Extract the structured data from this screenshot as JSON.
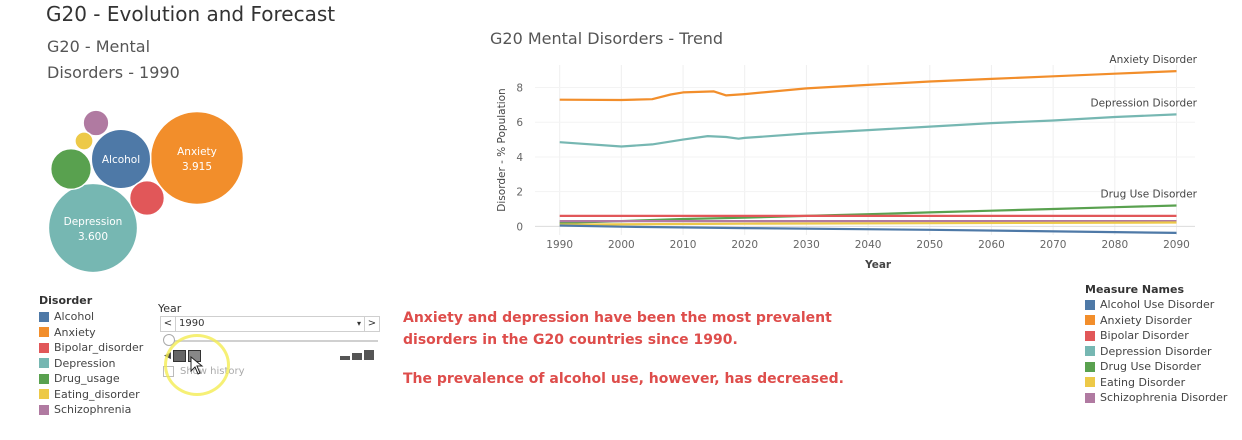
{
  "page": {
    "title": "G20 - Evolution and Forecast",
    "bubble_title": "G20 - Mental Disorders - 1990",
    "line_title": "G20 Mental Disorders - Trend"
  },
  "colors": {
    "blue": "#4e79a7",
    "orange": "#f28e2b",
    "red": "#e15759",
    "teal": "#76b7b2",
    "green": "#59a14f",
    "yellow": "#edc948",
    "purple": "#b07aa1"
  },
  "chart_data": [
    {
      "type": "bubble",
      "title": "G20 - Mental Disorders - 1990",
      "bubbles": [
        {
          "name": "Anxiety",
          "label": "Anxiety",
          "value_label": "3.915",
          "value": 3.915,
          "color": "#f28e2b"
        },
        {
          "name": "Depression",
          "label": "Depression",
          "value_label": "3.600",
          "value": 3.6,
          "color": "#76b7b2"
        },
        {
          "name": "Alcohol",
          "label": "Alcohol",
          "value_label": "",
          "value": 1.6,
          "color": "#4e79a7"
        },
        {
          "name": "Drug_usage",
          "label": "",
          "value_label": "",
          "value": 0.75,
          "color": "#59a14f"
        },
        {
          "name": "Bipolar_disorder",
          "label": "",
          "value_label": "",
          "value": 0.55,
          "color": "#e15759"
        },
        {
          "name": "Schizophrenia",
          "label": "",
          "value_label": "",
          "value": 0.3,
          "color": "#b07aa1"
        },
        {
          "name": "Eating_disorder",
          "label": "",
          "value_label": "",
          "value": 0.15,
          "color": "#edc948"
        }
      ]
    },
    {
      "type": "line",
      "title": "G20 Mental Disorders - Trend",
      "xlabel": "Year",
      "ylabel": "Disorder - % Population",
      "x_ticks": [
        1990,
        2000,
        2010,
        2020,
        2030,
        2040,
        2050,
        2060,
        2070,
        2080,
        2090
      ],
      "y_ticks": [
        0,
        2,
        4,
        6,
        8
      ],
      "xlim": [
        1986,
        2093
      ],
      "ylim": [
        -0.5,
        9.3
      ],
      "series": [
        {
          "name": "Anxiety Disorder",
          "color": "#f28e2b",
          "end_label": "Anxiety Disorder",
          "points": [
            [
              1990,
              7.3
            ],
            [
              2000,
              7.28
            ],
            [
              2005,
              7.33
            ],
            [
              2008,
              7.6
            ],
            [
              2010,
              7.72
            ],
            [
              2015,
              7.78
            ],
            [
              2017,
              7.55
            ],
            [
              2020,
              7.62
            ],
            [
              2030,
              7.95
            ],
            [
              2040,
              8.15
            ],
            [
              2050,
              8.35
            ],
            [
              2060,
              8.5
            ],
            [
              2070,
              8.65
            ],
            [
              2080,
              8.8
            ],
            [
              2090,
              8.95
            ]
          ]
        },
        {
          "name": "Depression Disorder",
          "color": "#76b7b2",
          "end_label": "Depression Disorder",
          "points": [
            [
              1990,
              4.85
            ],
            [
              2000,
              4.6
            ],
            [
              2005,
              4.72
            ],
            [
              2010,
              5.0
            ],
            [
              2014,
              5.2
            ],
            [
              2017,
              5.15
            ],
            [
              2019,
              5.05
            ],
            [
              2020,
              5.1
            ],
            [
              2030,
              5.35
            ],
            [
              2040,
              5.55
            ],
            [
              2050,
              5.75
            ],
            [
              2060,
              5.95
            ],
            [
              2070,
              6.1
            ],
            [
              2080,
              6.3
            ],
            [
              2090,
              6.45
            ]
          ]
        },
        {
          "name": "Drug Use Disorder",
          "color": "#59a14f",
          "end_label": "Drug Use Disorder",
          "points": [
            [
              1990,
              0.2
            ],
            [
              2000,
              0.3
            ],
            [
              2010,
              0.42
            ],
            [
              2020,
              0.5
            ],
            [
              2030,
              0.6
            ],
            [
              2040,
              0.7
            ],
            [
              2050,
              0.8
            ],
            [
              2060,
              0.9
            ],
            [
              2070,
              1.0
            ],
            [
              2080,
              1.1
            ],
            [
              2090,
              1.2
            ]
          ]
        },
        {
          "name": "Bipolar Disorder",
          "color": "#e15759",
          "end_label": "",
          "points": [
            [
              1990,
              0.6
            ],
            [
              2020,
              0.6
            ],
            [
              2090,
              0.6
            ]
          ]
        },
        {
          "name": "Schizophrenia Disorder",
          "color": "#b07aa1",
          "end_label": "",
          "points": [
            [
              1990,
              0.3
            ],
            [
              2020,
              0.3
            ],
            [
              2090,
              0.3
            ]
          ]
        },
        {
          "name": "Eating Disorder",
          "color": "#edc948",
          "end_label": "",
          "points": [
            [
              1990,
              0.1
            ],
            [
              2020,
              0.15
            ],
            [
              2090,
              0.22
            ]
          ]
        },
        {
          "name": "Alcohol Use Disorder",
          "color": "#4e79a7",
          "end_label": "",
          "points": [
            [
              1990,
              0.05
            ],
            [
              2000,
              -0.02
            ],
            [
              2020,
              -0.1
            ],
            [
              2050,
              -0.2
            ],
            [
              2090,
              -0.38
            ]
          ]
        }
      ]
    }
  ],
  "legend_disorder": {
    "title": "Disorder",
    "items": [
      {
        "label": "Alcohol",
        "color": "#4e79a7"
      },
      {
        "label": "Anxiety",
        "color": "#f28e2b"
      },
      {
        "label": "Bipolar_disorder",
        "color": "#e15759"
      },
      {
        "label": "Depression",
        "color": "#76b7b2"
      },
      {
        "label": "Drug_usage",
        "color": "#59a14f"
      },
      {
        "label": "Eating_disorder",
        "color": "#edc948"
      },
      {
        "label": "Schizophrenia",
        "color": "#b07aa1"
      }
    ]
  },
  "legend_measures": {
    "title": "Measure Names",
    "items": [
      {
        "label": "Alcohol Use Disorder",
        "color": "#4e79a7"
      },
      {
        "label": "Anxiety Disorder",
        "color": "#f28e2b"
      },
      {
        "label": "Bipolar Disorder",
        "color": "#e15759"
      },
      {
        "label": "Depression Disorder",
        "color": "#76b7b2"
      },
      {
        "label": "Drug Use Disorder",
        "color": "#59a14f"
      },
      {
        "label": "Eating Disorder",
        "color": "#edc948"
      },
      {
        "label": "Schizophrenia Disorder",
        "color": "#b07aa1"
      }
    ]
  },
  "year_filter": {
    "label": "Year",
    "value": "1990",
    "prev": "<",
    "next": ">",
    "dropdown": "▾",
    "show_history": "Show history"
  },
  "annotation": {
    "line1": "Anxiety and depression have been the most prevalent",
    "line2": "disorders in the G20 countries since 1990.",
    "line3": "The prevalence of alcohol use, however, has decreased."
  }
}
